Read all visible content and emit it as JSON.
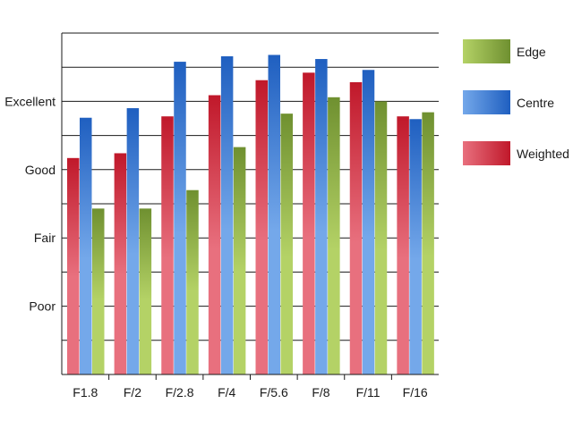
{
  "chart_data": {
    "type": "bar",
    "title": "",
    "xlabel": "",
    "ylabel": "",
    "categories": [
      "F1.8",
      "F/2",
      "F/2.8",
      "F/4",
      "F/5.6",
      "F/8",
      "F/11",
      "F/16"
    ],
    "ylim": [
      0,
      5
    ],
    "y_ticks": [
      {
        "value": 1,
        "label": "Poor"
      },
      {
        "value": 2,
        "label": "Fair"
      },
      {
        "value": 3,
        "label": "Good"
      },
      {
        "value": 4,
        "label": "Excellent"
      }
    ],
    "grid": true,
    "legend_position": "right",
    "series": [
      {
        "name": "Weighted",
        "color": "#c0182a",
        "color_light": "#e8707e",
        "values": [
          3.17,
          3.24,
          3.78,
          4.09,
          4.31,
          4.42,
          4.28,
          3.78
        ]
      },
      {
        "name": "Centre",
        "color": "#1f5fc0",
        "color_light": "#74a8ea",
        "values": [
          3.76,
          3.9,
          4.58,
          4.66,
          4.68,
          4.62,
          4.46,
          3.74
        ]
      },
      {
        "name": "Edge",
        "color": "#6f9030",
        "color_light": "#b4d266",
        "values": [
          2.43,
          2.43,
          2.7,
          3.33,
          3.82,
          4.06,
          4.0,
          3.84
        ]
      }
    ],
    "legend_order": [
      "Edge",
      "Centre",
      "Weighted"
    ]
  }
}
